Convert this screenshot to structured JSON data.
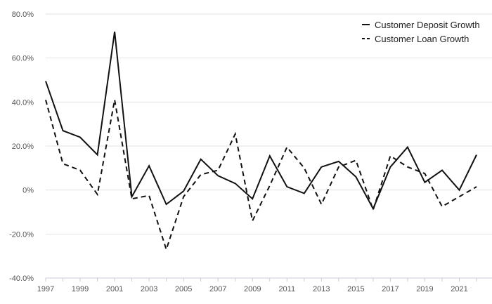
{
  "chart_data": {
    "type": "line",
    "title": "",
    "xlabel": "",
    "ylabel": "",
    "x": [
      1997,
      1998,
      1999,
      2000,
      2001,
      2002,
      2003,
      2004,
      2005,
      2006,
      2007,
      2008,
      2009,
      2010,
      2011,
      2012,
      2013,
      2014,
      2015,
      2016,
      2017,
      2018,
      2019,
      2020,
      2021,
      2022
    ],
    "x_tick_labels": [
      "1997",
      "1999",
      "2001",
      "2003",
      "2005",
      "2007",
      "2009",
      "2011",
      "2013",
      "2015",
      "2017",
      "2019",
      "2021"
    ],
    "y_tick_labels": [
      "80.0%",
      "60.0%",
      "40.0%",
      "20.0%",
      "0%",
      "-20.0%",
      "-40.0%"
    ],
    "y_ticks": [
      80,
      60,
      40,
      20,
      0,
      -20,
      -40
    ],
    "ylim": [
      -40,
      80
    ],
    "xlim": [
      1997,
      2022
    ],
    "grid": "horizontal",
    "legend_position": "top-right",
    "series": [
      {
        "name": "Customer Deposit Growth",
        "style": "solid",
        "color": "#111111",
        "values": [
          49.5,
          27,
          24,
          16,
          72,
          -3,
          11,
          -6.5,
          -0.5,
          14,
          6.5,
          3,
          -4,
          15.5,
          1.5,
          -1.5,
          10.5,
          13,
          6,
          -8.5,
          10.5,
          19.5,
          3.5,
          9,
          0,
          16
        ]
      },
      {
        "name": "Customer Loan Growth",
        "style": "dashed",
        "color": "#111111",
        "values": [
          41,
          12,
          9,
          -2,
          41,
          -4,
          -2.5,
          -27,
          -3,
          7,
          9,
          25.5,
          -14,
          2,
          19.5,
          10,
          -6.5,
          10.5,
          13.5,
          -9,
          15.5,
          10.5,
          7.5,
          -7.5,
          -3,
          1.5
        ]
      }
    ]
  }
}
